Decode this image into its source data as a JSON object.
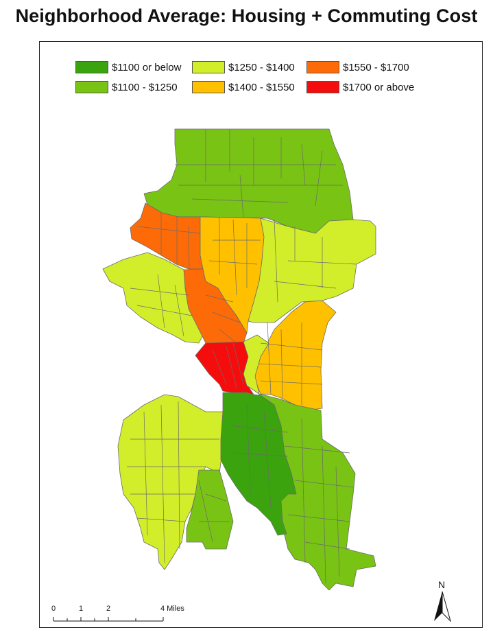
{
  "title": "Neighborhood Average: Housing + Commuting Cost",
  "legend": [
    {
      "label": "$1100 or below",
      "color": "#3aa30e"
    },
    {
      "label": "$1100 - $1250",
      "color": "#78c314"
    },
    {
      "label": "$1250 - $1400",
      "color": "#d2ee2a"
    },
    {
      "label": "$1400 - $1550",
      "color": "#ffc000"
    },
    {
      "label": "$1550 - $1700",
      "color": "#fd6a08"
    },
    {
      "label": "$1700 or above",
      "color": "#f50d0d"
    }
  ],
  "scale_bar": {
    "ticks": [
      "0",
      "1",
      "2",
      "4 Miles"
    ]
  },
  "north_arrow": {
    "label": "N"
  }
}
